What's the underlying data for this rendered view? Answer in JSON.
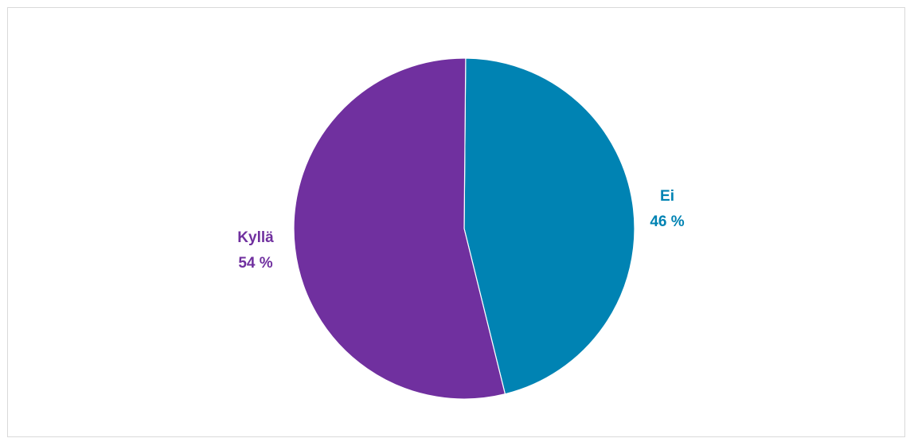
{
  "chart_data": {
    "type": "pie",
    "title": "",
    "slices": [
      {
        "label": "Ei",
        "value": 46,
        "value_label": "46 %",
        "color": "#0083b3"
      },
      {
        "label": "Kyllä",
        "value": 54,
        "value_label": "54 %",
        "color": "#70309f"
      }
    ],
    "start_angle_deg": 0.5,
    "direction": "clockwise",
    "legend": "none"
  }
}
